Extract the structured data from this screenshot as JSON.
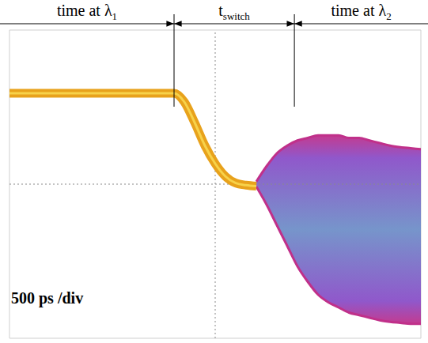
{
  "chart_data": {
    "type": "line",
    "x": [
      0,
      100,
      200,
      300,
      400,
      500,
      600,
      700,
      800,
      900,
      1000,
      1100,
      1200,
      1300,
      1400,
      1500,
      1600,
      1700,
      1800,
      1900,
      2000,
      2100,
      2200,
      2300,
      2400,
      2500,
      2600,
      2700,
      2800,
      2900,
      3000,
      3100,
      3200,
      3300,
      3400,
      3500,
      3600,
      3700,
      3800,
      3900,
      4000
    ],
    "xlim": [
      0,
      4000
    ],
    "xticks": [
      0,
      500,
      1000,
      1500,
      2000,
      2500,
      3000,
      3500,
      4000
    ],
    "ylim": [
      0,
      6
    ],
    "yticks": [
      0,
      1,
      2,
      3,
      4,
      5,
      6
    ],
    "grid": true,
    "tick_labels": false,
    "annotations": [
      {
        "text": "time at λ",
        "subscript": "1",
        "start": 0,
        "end": 1600
      },
      {
        "text": "t",
        "subscript": "switch",
        "start": 1600,
        "end": 2770
      },
      {
        "text": "time at λ",
        "subscript": "2",
        "start": 2770,
        "end": 4000
      }
    ],
    "scale_label": "500 ps /div",
    "series": [
      {
        "type": "line",
        "color": "#e8a21c",
        "values": [
          4.77,
          4.77,
          4.77,
          4.77,
          4.77,
          4.77,
          4.77,
          4.77,
          4.77,
          4.77,
          4.77,
          4.77,
          4.77,
          4.77,
          4.77,
          4.77,
          4.77,
          4.6,
          4.2,
          3.75,
          3.4,
          3.15,
          3.02,
          2.98,
          2.96,
          null,
          null,
          null,
          null,
          null,
          null,
          null,
          null,
          null,
          null,
          null,
          null,
          null,
          null,
          null,
          null
        ]
      },
      {
        "type": "range",
        "color": "#8a5ad0",
        "low": [
          null,
          null,
          null,
          null,
          null,
          null,
          null,
          null,
          null,
          null,
          null,
          null,
          null,
          null,
          null,
          null,
          null,
          null,
          null,
          null,
          null,
          null,
          null,
          null,
          2.95,
          2.6,
          2.2,
          1.8,
          1.4,
          1.1,
          0.85,
          0.7,
          0.6,
          0.5,
          0.45,
          0.4,
          0.35,
          0.32,
          0.3,
          0.28,
          0.28
        ],
        "high": [
          null,
          null,
          null,
          null,
          null,
          null,
          null,
          null,
          null,
          null,
          null,
          null,
          null,
          null,
          null,
          null,
          null,
          null,
          null,
          null,
          null,
          null,
          null,
          null,
          3.05,
          3.35,
          3.6,
          3.75,
          3.85,
          3.9,
          3.95,
          3.95,
          3.95,
          3.9,
          3.9,
          3.85,
          3.8,
          3.75,
          3.72,
          3.7,
          3.68
        ]
      }
    ]
  }
}
